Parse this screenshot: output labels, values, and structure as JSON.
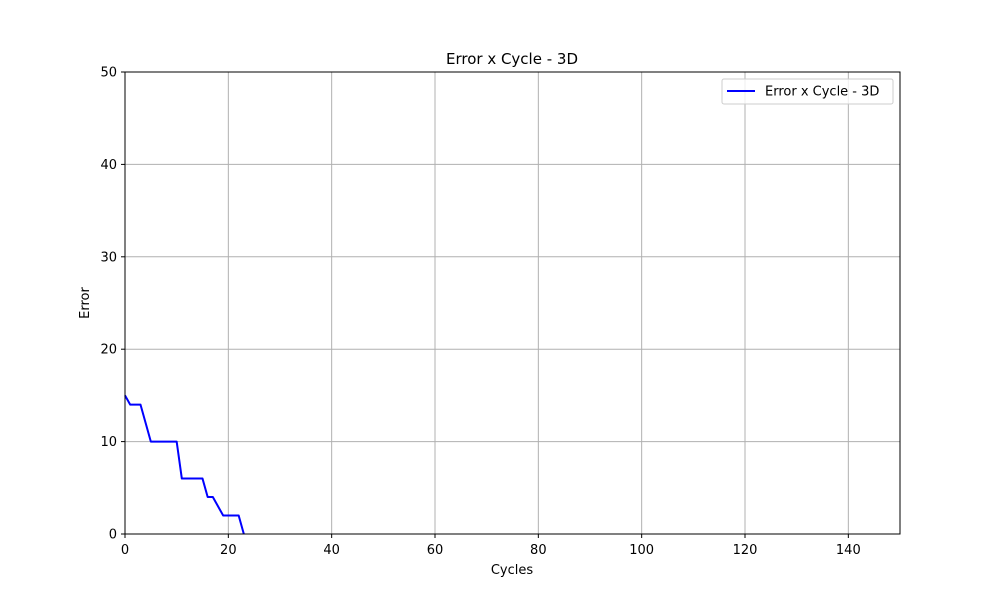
{
  "chart_data": {
    "type": "line",
    "title": "Error x Cycle - 3D",
    "xlabel": "Cycles",
    "ylabel": "Error",
    "xlim": [
      0,
      150
    ],
    "ylim": [
      0,
      50
    ],
    "x_ticks": [
      0,
      20,
      40,
      60,
      80,
      100,
      120,
      140
    ],
    "y_ticks": [
      0,
      10,
      20,
      30,
      40,
      50
    ],
    "x_tick_labels": [
      "0",
      "20",
      "40",
      "60",
      "80",
      "100",
      "120",
      "140"
    ],
    "y_tick_labels": [
      "0",
      "10",
      "20",
      "30",
      "40",
      "50"
    ],
    "grid": true,
    "legend_position": "upper right",
    "series": [
      {
        "name": "Error x Cycle - 3D",
        "color": "#0000ff",
        "x": [
          0,
          1,
          2,
          3,
          4,
          5,
          6,
          7,
          8,
          9,
          10,
          11,
          12,
          13,
          14,
          15,
          16,
          17,
          18,
          19,
          20,
          21,
          22,
          23
        ],
        "y": [
          15,
          14,
          14,
          14,
          12,
          10,
          10,
          10,
          10,
          10,
          10,
          6,
          6,
          6,
          6,
          6,
          4,
          4,
          3,
          2,
          2,
          2,
          2,
          0
        ]
      }
    ]
  }
}
